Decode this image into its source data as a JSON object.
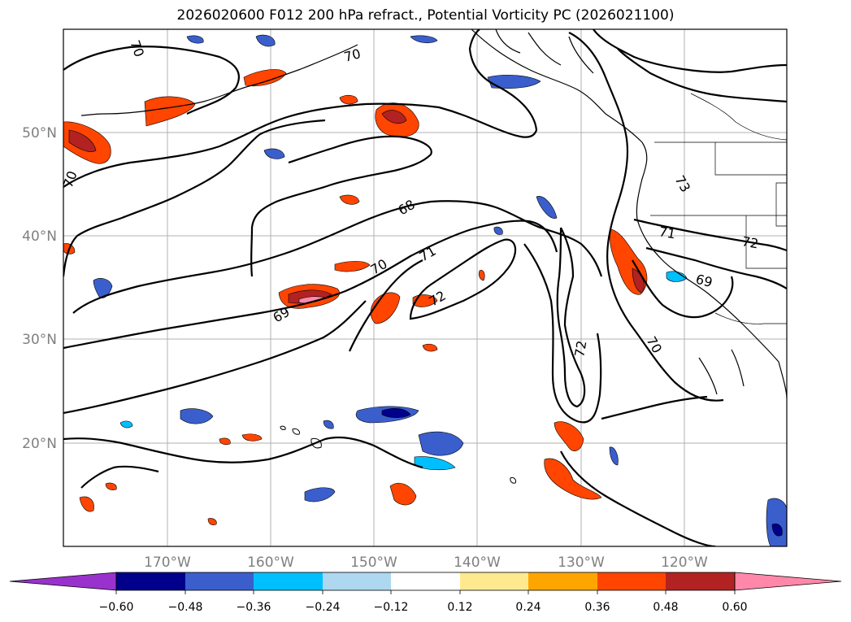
{
  "title": "2026020600 F012 200 hPa refract., Potential Vorticity PC (2026021100)",
  "lat_labels": [
    "50°N",
    "40°N",
    "30°N",
    "20°N"
  ],
  "lon_labels": [
    "170°W",
    "160°W",
    "150°W",
    "140°W",
    "130°W",
    "120°W"
  ],
  "contour_labels": [
    "70",
    "70",
    "70",
    "68",
    "71",
    "72",
    "69",
    "72",
    "70",
    "73",
    "71",
    "72",
    "69",
    "70"
  ],
  "colorbar": {
    "ticks": [
      "−0.60",
      "−0.48",
      "−0.36",
      "−0.24",
      "−0.12",
      "0.12",
      "0.24",
      "0.36",
      "0.48",
      "0.60"
    ],
    "colors": [
      "#9932cc",
      "#00008b",
      "#3a5fcd",
      "#00bfff",
      "#add8f0",
      "#ffffff",
      "#ffe98f",
      "#ffa500",
      "#ff4500",
      "#b22222",
      "#ff88aa"
    ]
  }
}
